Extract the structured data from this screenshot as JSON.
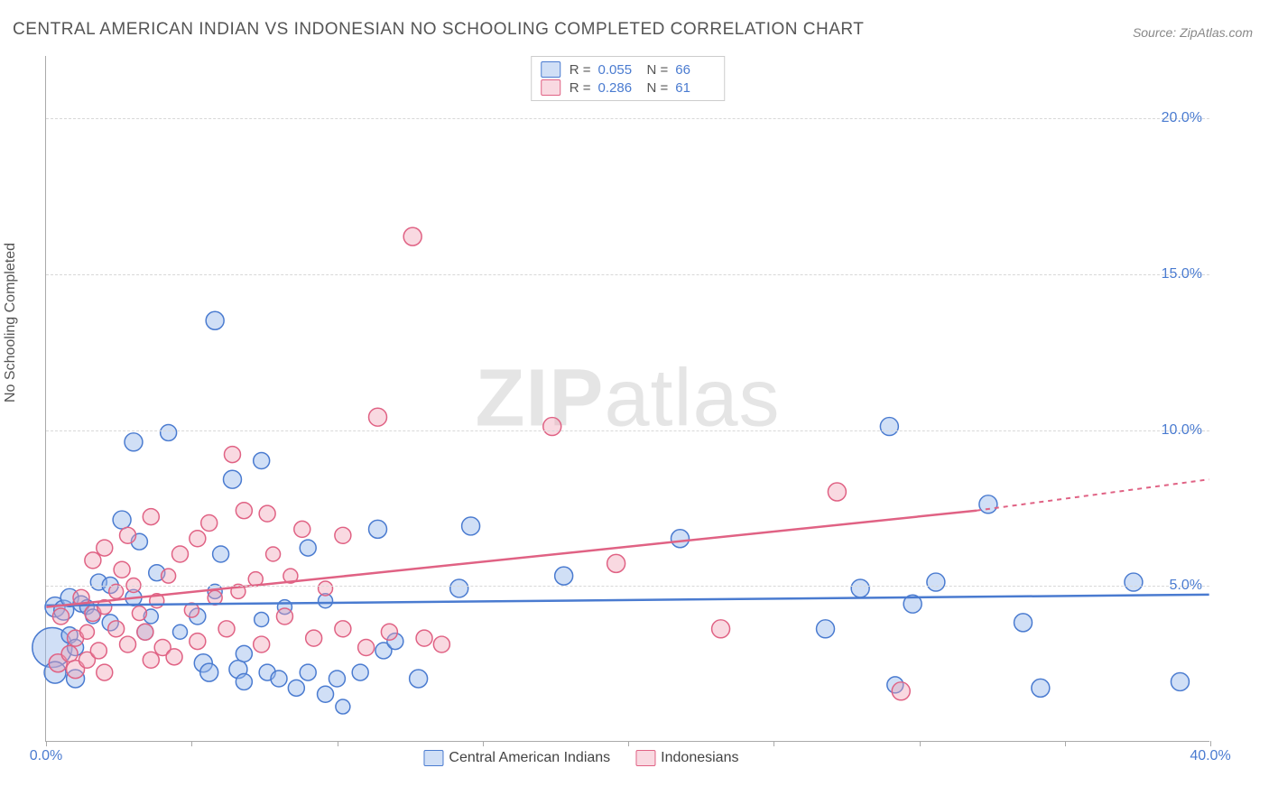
{
  "title": "CENTRAL AMERICAN INDIAN VS INDONESIAN NO SCHOOLING COMPLETED CORRELATION CHART",
  "source": "Source: ZipAtlas.com",
  "y_axis_label": "No Schooling Completed",
  "watermark": {
    "bold": "ZIP",
    "rest": "atlas"
  },
  "chart": {
    "type": "scatter-correlation",
    "xlim": [
      0,
      40
    ],
    "ylim": [
      0,
      22
    ],
    "x_ticks": [
      0,
      5,
      10,
      15,
      20,
      25,
      30,
      35,
      40
    ],
    "x_tick_labels": {
      "0": "0.0%",
      "40": "40.0%"
    },
    "y_ticks": [
      5,
      10,
      15,
      20
    ],
    "y_tick_labels": {
      "5": "5.0%",
      "10": "10.0%",
      "15": "15.0%",
      "20": "20.0%"
    },
    "grid_color": "#d8d8d8",
    "axis_color": "#aaaaaa",
    "background_color": "#ffffff",
    "series": [
      {
        "name": "Central American Indians",
        "stroke": "#4a7bd0",
        "fill": "rgba(150,185,235,0.45)",
        "R": "0.055",
        "N": "66",
        "trend": {
          "x1": 0,
          "y1": 4.35,
          "x2": 40,
          "y2": 4.7,
          "dash_from_x": 40
        },
        "points": [
          {
            "x": 0.2,
            "y": 3.0,
            "r": 22
          },
          {
            "x": 0.3,
            "y": 4.3,
            "r": 11
          },
          {
            "x": 0.3,
            "y": 2.2,
            "r": 12
          },
          {
            "x": 0.6,
            "y": 4.2,
            "r": 11
          },
          {
            "x": 0.8,
            "y": 3.4,
            "r": 9
          },
          {
            "x": 0.8,
            "y": 4.6,
            "r": 10
          },
          {
            "x": 1.0,
            "y": 3.0,
            "r": 9
          },
          {
            "x": 1.2,
            "y": 4.4,
            "r": 9
          },
          {
            "x": 1.0,
            "y": 2.0,
            "r": 10
          },
          {
            "x": 1.4,
            "y": 4.3,
            "r": 8
          },
          {
            "x": 1.6,
            "y": 4.0,
            "r": 8
          },
          {
            "x": 1.8,
            "y": 5.1,
            "r": 9
          },
          {
            "x": 2.2,
            "y": 3.8,
            "r": 9
          },
          {
            "x": 2.2,
            "y": 5.0,
            "r": 9
          },
          {
            "x": 2.6,
            "y": 7.1,
            "r": 10
          },
          {
            "x": 3.0,
            "y": 4.6,
            "r": 9
          },
          {
            "x": 3.0,
            "y": 9.6,
            "r": 10
          },
          {
            "x": 3.2,
            "y": 6.4,
            "r": 9
          },
          {
            "x": 3.4,
            "y": 3.5,
            "r": 9
          },
          {
            "x": 3.6,
            "y": 4.0,
            "r": 8
          },
          {
            "x": 3.8,
            "y": 5.4,
            "r": 9
          },
          {
            "x": 4.2,
            "y": 9.9,
            "r": 9
          },
          {
            "x": 4.6,
            "y": 3.5,
            "r": 8
          },
          {
            "x": 5.2,
            "y": 4.0,
            "r": 9
          },
          {
            "x": 5.4,
            "y": 2.5,
            "r": 10
          },
          {
            "x": 5.6,
            "y": 2.2,
            "r": 10
          },
          {
            "x": 5.8,
            "y": 13.5,
            "r": 10
          },
          {
            "x": 5.8,
            "y": 4.8,
            "r": 8
          },
          {
            "x": 6.0,
            "y": 6.0,
            "r": 9
          },
          {
            "x": 6.4,
            "y": 8.4,
            "r": 10
          },
          {
            "x": 6.6,
            "y": 2.3,
            "r": 10
          },
          {
            "x": 6.8,
            "y": 2.8,
            "r": 9
          },
          {
            "x": 6.8,
            "y": 1.9,
            "r": 9
          },
          {
            "x": 7.4,
            "y": 9.0,
            "r": 9
          },
          {
            "x": 7.4,
            "y": 3.9,
            "r": 8
          },
          {
            "x": 7.6,
            "y": 2.2,
            "r": 9
          },
          {
            "x": 8.0,
            "y": 2.0,
            "r": 9
          },
          {
            "x": 8.2,
            "y": 4.3,
            "r": 8
          },
          {
            "x": 8.6,
            "y": 1.7,
            "r": 9
          },
          {
            "x": 9.0,
            "y": 6.2,
            "r": 9
          },
          {
            "x": 9.0,
            "y": 2.2,
            "r": 9
          },
          {
            "x": 9.6,
            "y": 4.5,
            "r": 8
          },
          {
            "x": 9.6,
            "y": 1.5,
            "r": 9
          },
          {
            "x": 10.0,
            "y": 2.0,
            "r": 9
          },
          {
            "x": 10.2,
            "y": 1.1,
            "r": 8
          },
          {
            "x": 10.8,
            "y": 2.2,
            "r": 9
          },
          {
            "x": 11.4,
            "y": 6.8,
            "r": 10
          },
          {
            "x": 11.6,
            "y": 2.9,
            "r": 9
          },
          {
            "x": 12.0,
            "y": 3.2,
            "r": 9
          },
          {
            "x": 12.8,
            "y": 2.0,
            "r": 10
          },
          {
            "x": 14.2,
            "y": 4.9,
            "r": 10
          },
          {
            "x": 14.6,
            "y": 6.9,
            "r": 10
          },
          {
            "x": 17.8,
            "y": 5.3,
            "r": 10
          },
          {
            "x": 21.8,
            "y": 6.5,
            "r": 10
          },
          {
            "x": 26.8,
            "y": 3.6,
            "r": 10
          },
          {
            "x": 28.0,
            "y": 4.9,
            "r": 10
          },
          {
            "x": 29.0,
            "y": 10.1,
            "r": 10
          },
          {
            "x": 29.2,
            "y": 1.8,
            "r": 9
          },
          {
            "x": 29.8,
            "y": 4.4,
            "r": 10
          },
          {
            "x": 30.6,
            "y": 5.1,
            "r": 10
          },
          {
            "x": 32.4,
            "y": 7.6,
            "r": 10
          },
          {
            "x": 33.6,
            "y": 3.8,
            "r": 10
          },
          {
            "x": 34.2,
            "y": 1.7,
            "r": 10
          },
          {
            "x": 37.4,
            "y": 5.1,
            "r": 10
          },
          {
            "x": 39.0,
            "y": 1.9,
            "r": 10
          }
        ]
      },
      {
        "name": "Indonesians",
        "stroke": "#e06284",
        "fill": "rgba(240,160,180,0.40)",
        "R": "0.286",
        "N": "61",
        "trend": {
          "x1": 0,
          "y1": 4.3,
          "x2": 32,
          "y2": 7.4,
          "dash_from_x": 32,
          "dash_x2": 40,
          "dash_y2": 8.4
        },
        "points": [
          {
            "x": 0.4,
            "y": 2.5,
            "r": 10
          },
          {
            "x": 0.5,
            "y": 4.0,
            "r": 9
          },
          {
            "x": 0.8,
            "y": 2.8,
            "r": 9
          },
          {
            "x": 1.0,
            "y": 3.3,
            "r": 9
          },
          {
            "x": 1.0,
            "y": 2.3,
            "r": 10
          },
          {
            "x": 1.2,
            "y": 4.6,
            "r": 9
          },
          {
            "x": 1.4,
            "y": 2.6,
            "r": 9
          },
          {
            "x": 1.4,
            "y": 3.5,
            "r": 8
          },
          {
            "x": 1.6,
            "y": 4.1,
            "r": 9
          },
          {
            "x": 1.6,
            "y": 5.8,
            "r": 9
          },
          {
            "x": 1.8,
            "y": 2.9,
            "r": 9
          },
          {
            "x": 2.0,
            "y": 6.2,
            "r": 9
          },
          {
            "x": 2.0,
            "y": 4.3,
            "r": 8
          },
          {
            "x": 2.0,
            "y": 2.2,
            "r": 9
          },
          {
            "x": 2.4,
            "y": 3.6,
            "r": 9
          },
          {
            "x": 2.4,
            "y": 4.8,
            "r": 8
          },
          {
            "x": 2.6,
            "y": 5.5,
            "r": 9
          },
          {
            "x": 2.8,
            "y": 3.1,
            "r": 9
          },
          {
            "x": 2.8,
            "y": 6.6,
            "r": 9
          },
          {
            "x": 3.0,
            "y": 5.0,
            "r": 8
          },
          {
            "x": 3.2,
            "y": 4.1,
            "r": 8
          },
          {
            "x": 3.4,
            "y": 3.5,
            "r": 9
          },
          {
            "x": 3.6,
            "y": 2.6,
            "r": 9
          },
          {
            "x": 3.6,
            "y": 7.2,
            "r": 9
          },
          {
            "x": 3.8,
            "y": 4.5,
            "r": 8
          },
          {
            "x": 4.0,
            "y": 3.0,
            "r": 9
          },
          {
            "x": 4.2,
            "y": 5.3,
            "r": 8
          },
          {
            "x": 4.4,
            "y": 2.7,
            "r": 9
          },
          {
            "x": 4.6,
            "y": 6.0,
            "r": 9
          },
          {
            "x": 5.0,
            "y": 4.2,
            "r": 8
          },
          {
            "x": 5.2,
            "y": 3.2,
            "r": 9
          },
          {
            "x": 5.2,
            "y": 6.5,
            "r": 9
          },
          {
            "x": 5.6,
            "y": 7.0,
            "r": 9
          },
          {
            "x": 5.8,
            "y": 4.6,
            "r": 8
          },
          {
            "x": 6.2,
            "y": 3.6,
            "r": 9
          },
          {
            "x": 6.4,
            "y": 9.2,
            "r": 9
          },
          {
            "x": 6.6,
            "y": 4.8,
            "r": 8
          },
          {
            "x": 6.8,
            "y": 7.4,
            "r": 9
          },
          {
            "x": 7.2,
            "y": 5.2,
            "r": 8
          },
          {
            "x": 7.4,
            "y": 3.1,
            "r": 9
          },
          {
            "x": 7.6,
            "y": 7.3,
            "r": 9
          },
          {
            "x": 7.8,
            "y": 6.0,
            "r": 8
          },
          {
            "x": 8.2,
            "y": 4.0,
            "r": 9
          },
          {
            "x": 8.4,
            "y": 5.3,
            "r": 8
          },
          {
            "x": 8.8,
            "y": 6.8,
            "r": 9
          },
          {
            "x": 9.2,
            "y": 3.3,
            "r": 9
          },
          {
            "x": 9.6,
            "y": 4.9,
            "r": 8
          },
          {
            "x": 10.2,
            "y": 3.6,
            "r": 9
          },
          {
            "x": 10.2,
            "y": 6.6,
            "r": 9
          },
          {
            "x": 11.0,
            "y": 3.0,
            "r": 9
          },
          {
            "x": 11.4,
            "y": 10.4,
            "r": 10
          },
          {
            "x": 11.8,
            "y": 3.5,
            "r": 9
          },
          {
            "x": 12.6,
            "y": 16.2,
            "r": 10
          },
          {
            "x": 13.0,
            "y": 3.3,
            "r": 9
          },
          {
            "x": 13.6,
            "y": 3.1,
            "r": 9
          },
          {
            "x": 17.4,
            "y": 10.1,
            "r": 10
          },
          {
            "x": 19.6,
            "y": 5.7,
            "r": 10
          },
          {
            "x": 23.2,
            "y": 3.6,
            "r": 10
          },
          {
            "x": 27.2,
            "y": 8.0,
            "r": 10
          },
          {
            "x": 29.4,
            "y": 1.6,
            "r": 10
          }
        ]
      }
    ]
  },
  "legend_top": [
    {
      "series_index": 0
    },
    {
      "series_index": 1
    }
  ],
  "legend_bottom": [
    {
      "series_index": 0
    },
    {
      "series_index": 1
    }
  ]
}
